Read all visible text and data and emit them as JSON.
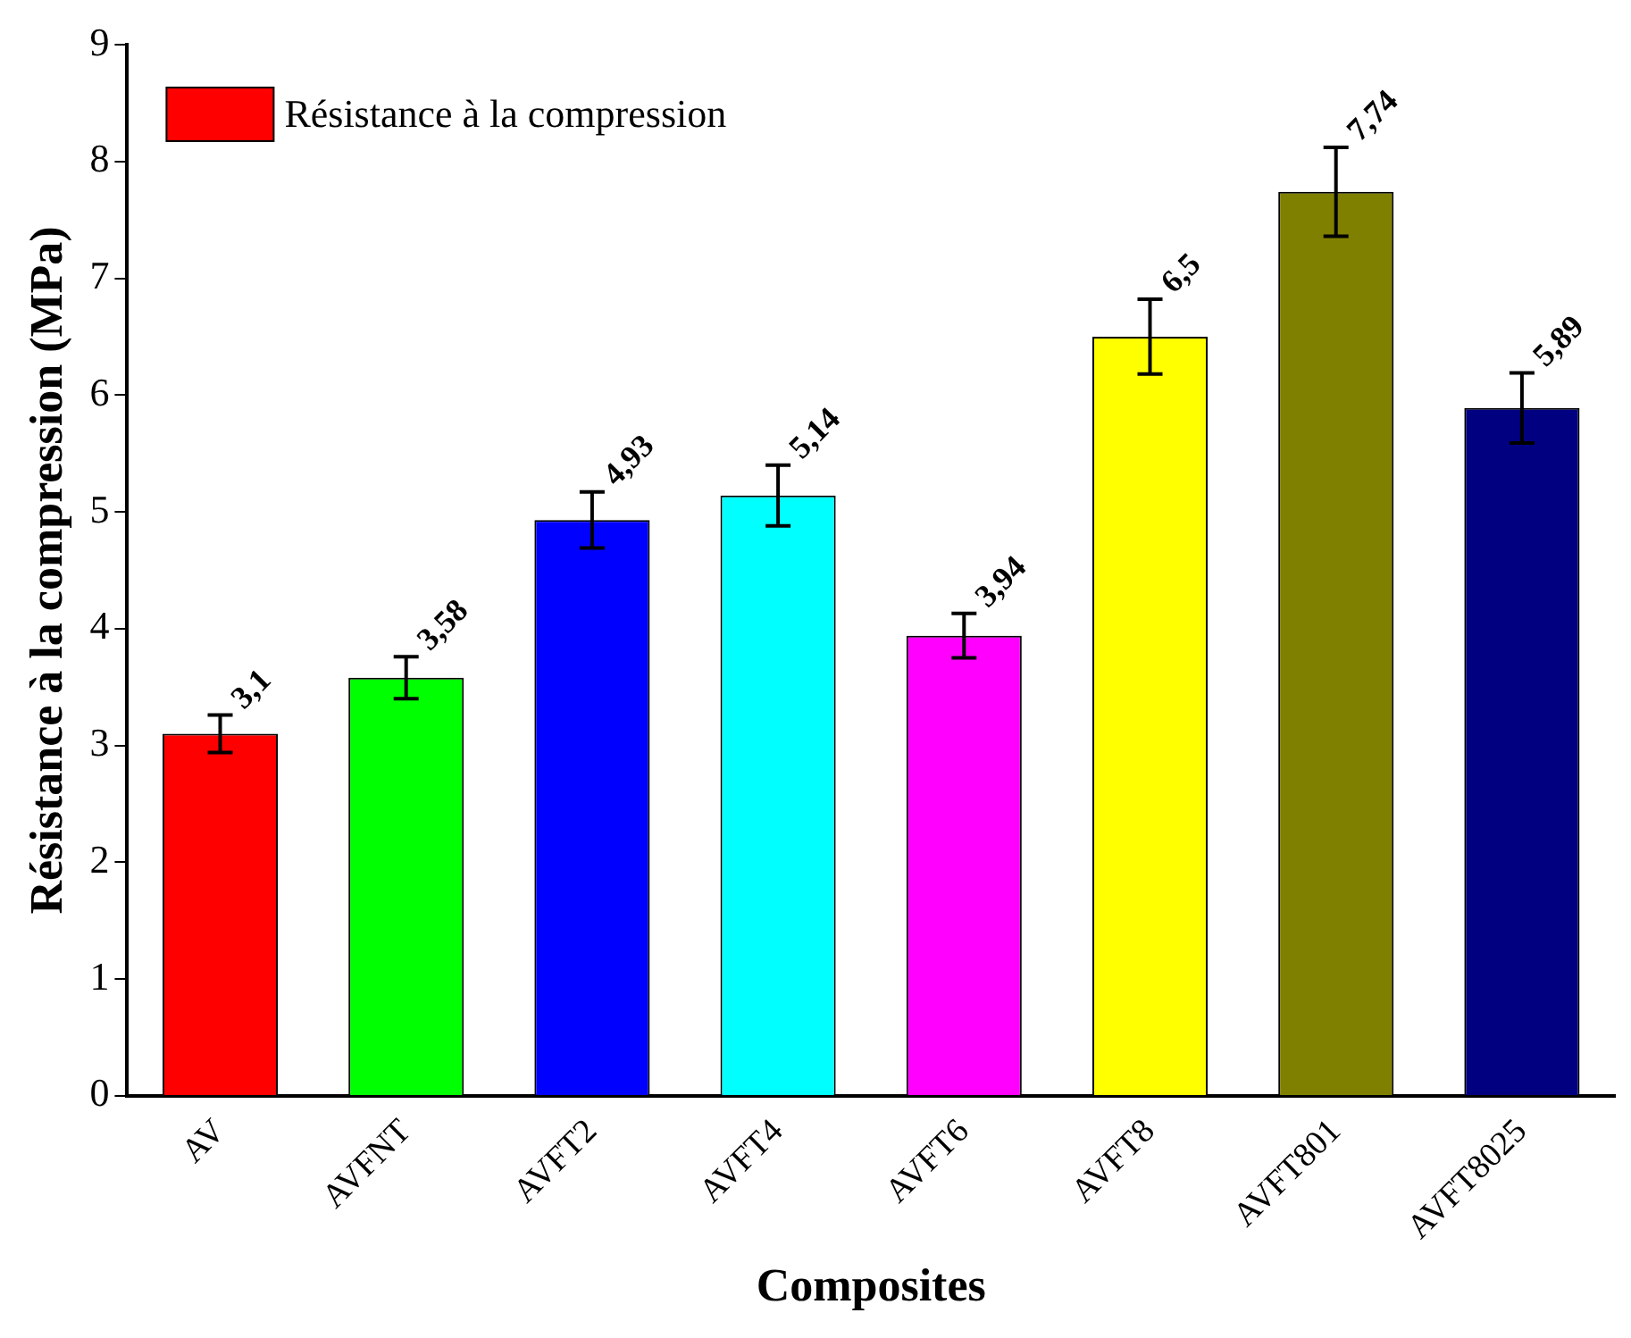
{
  "chart_data": {
    "type": "bar",
    "xlabel": "Composites",
    "ylabel": "Résistance à la compression (MPa)",
    "categories": [
      "AV",
      "AVFNT",
      "AVFT2",
      "AVFT4",
      "AVFT6",
      "AVFT8",
      "AVFT801",
      "AVFT8025"
    ],
    "series": [
      {
        "name": "Résistance à la compression",
        "colors": [
          "#ff0000",
          "#00ff00",
          "#0000ff",
          "#00ffff",
          "#ff00ff",
          "#ffff00",
          "#808000",
          "#000080"
        ],
        "values": [
          3.1,
          3.58,
          4.93,
          5.14,
          3.94,
          6.5,
          7.74,
          5.89
        ],
        "errors": [
          0.16,
          0.18,
          0.24,
          0.26,
          0.19,
          0.32,
          0.38,
          0.3
        ],
        "value_labels": [
          "3,1",
          "3,58",
          "4,93",
          "5,14",
          "3,94",
          "6,5",
          "7,74",
          "5,89"
        ]
      }
    ],
    "ylim": [
      0,
      9
    ],
    "yticks": [
      0,
      1,
      2,
      3,
      4,
      5,
      6,
      7,
      8,
      9
    ],
    "grid": false,
    "legend": "top left"
  }
}
